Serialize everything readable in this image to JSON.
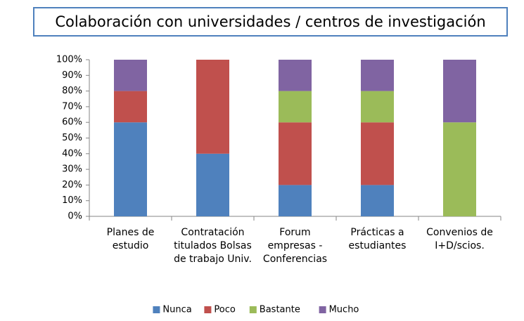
{
  "chart_data": {
    "type": "stacked_bar",
    "title": "Colaboración con universidades / centros de investigación",
    "categories": [
      "Planes de estudio",
      "Contratación titulados Bolsas de trabajo Univ.",
      "Forum empresas - Conferencias",
      "Prácticas a estudiantes",
      "Convenios de I+D/scios."
    ],
    "series": [
      {
        "name": "Nunca",
        "color": "#4f81bd",
        "values": [
          60,
          40,
          20,
          20,
          0
        ]
      },
      {
        "name": "Poco",
        "color": "#c0504d",
        "values": [
          20,
          60,
          40,
          40,
          0
        ]
      },
      {
        "name": "Bastante",
        "color": "#9bbb59",
        "values": [
          0,
          0,
          20,
          20,
          60
        ]
      },
      {
        "name": "Mucho",
        "color": "#8064a2",
        "values": [
          20,
          0,
          20,
          20,
          40
        ]
      }
    ],
    "ylim": [
      0,
      100
    ],
    "yticks": [
      {
        "value": 0,
        "label": "0%"
      },
      {
        "value": 10,
        "label": "10%"
      },
      {
        "value": 20,
        "label": "20%"
      },
      {
        "value": 30,
        "label": "30%"
      },
      {
        "value": 40,
        "label": "40%"
      },
      {
        "value": 50,
        "label": "50%"
      },
      {
        "value": 60,
        "label": "60%"
      },
      {
        "value": 70,
        "label": "70%"
      },
      {
        "value": 80,
        "label": "80%"
      },
      {
        "value": 90,
        "label": "90%"
      },
      {
        "value": 100,
        "label": "100%"
      }
    ],
    "grid": false,
    "legend": "bottom"
  }
}
